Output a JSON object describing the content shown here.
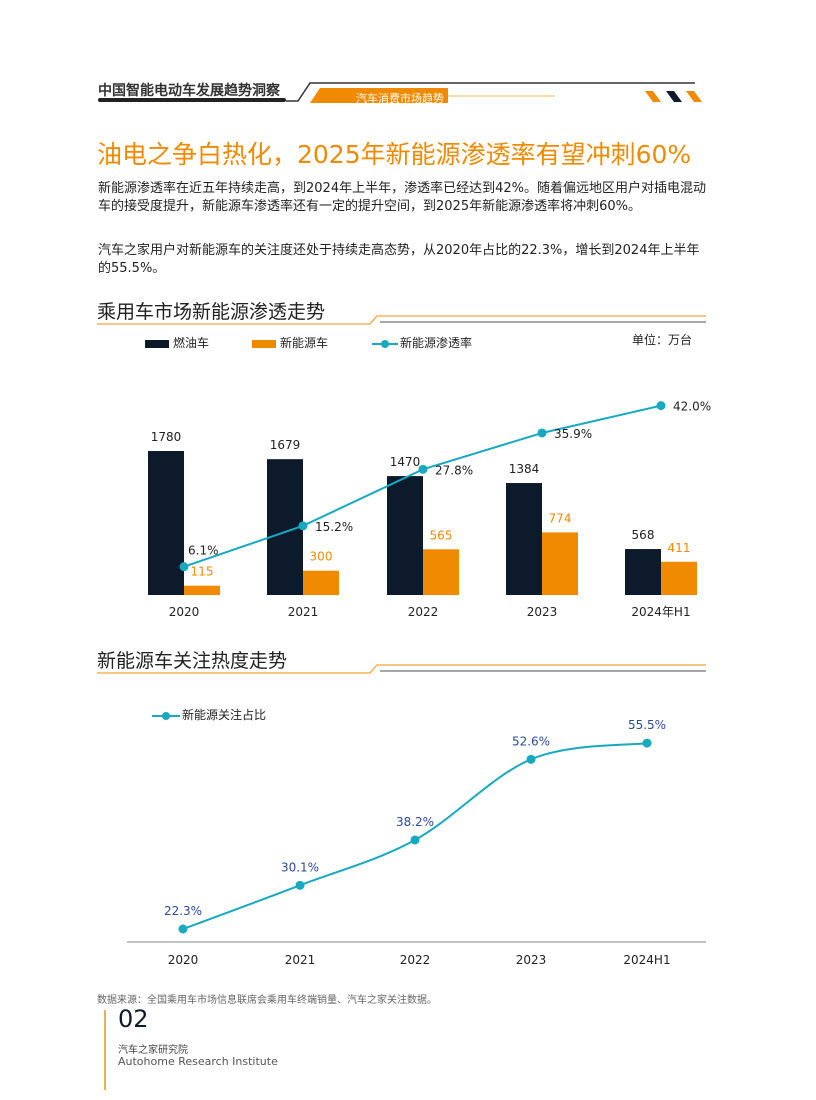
{
  "header": {
    "report_title": "中国智能电动车发展趋势洞察",
    "section": "汽车消费市场趋势"
  },
  "title": "油电之争白热化，2025年新能源渗透率有望冲刺60%",
  "paragraphs": [
    "新能源渗透率在近五年持续走高，到2024年上半年，渗透率已经达到42%。随着偏远地区用户对插电混动车的接受度提升，新能源车渗透率还有一定的提升空间，到2025年新能源渗透率将冲刺60%。",
    "汽车之家用户对新能源车的关注度还处于持续走高态势，从2020年占比的22.3%，增长到2024年上半年的55.5%。"
  ],
  "colors": {
    "accent": "#f08a00",
    "fuel": "#0d1a2b",
    "nev": "#f08a00",
    "line": "#16a9c0",
    "label_blue": "#2a4a9a"
  },
  "chart_data": [
    {
      "type": "bar",
      "title": "乘用车市场新能源渗透走势",
      "unit": "单位：万台",
      "categories": [
        "2020",
        "2021",
        "2022",
        "2023",
        "2024年H1"
      ],
      "series": [
        {
          "name": "燃油车",
          "type": "bar",
          "values": [
            1780,
            1679,
            1470,
            1384,
            568
          ]
        },
        {
          "name": "新能源车",
          "type": "bar",
          "values": [
            115,
            300,
            565,
            774,
            411
          ]
        },
        {
          "name": "新能源渗透率",
          "type": "line",
          "values": [
            6.1,
            15.2,
            27.8,
            35.9,
            42.0
          ],
          "labels": [
            "6.1%",
            "15.2%",
            "27.8%",
            "35.9%",
            "42.0%"
          ]
        }
      ],
      "legend": "top"
    },
    {
      "type": "line",
      "title": "新能源车关注热度走势",
      "categories": [
        "2020",
        "2021",
        "2022",
        "2023",
        "2024H1"
      ],
      "series": [
        {
          "name": "新能源关注占比",
          "values": [
            22.3,
            30.1,
            38.2,
            52.6,
            55.5
          ],
          "labels": [
            "22.3%",
            "30.1%",
            "38.2%",
            "52.6%",
            "55.5%"
          ]
        }
      ],
      "legend": "top-left"
    }
  ],
  "footer": {
    "source": "数据来源：全国乘用车市场信息联席会乘用车终端销量、汽车之家关注数据。",
    "page": "02",
    "org_cn": "汽车之家研究院",
    "org_en": "Autohome Research Institute"
  }
}
